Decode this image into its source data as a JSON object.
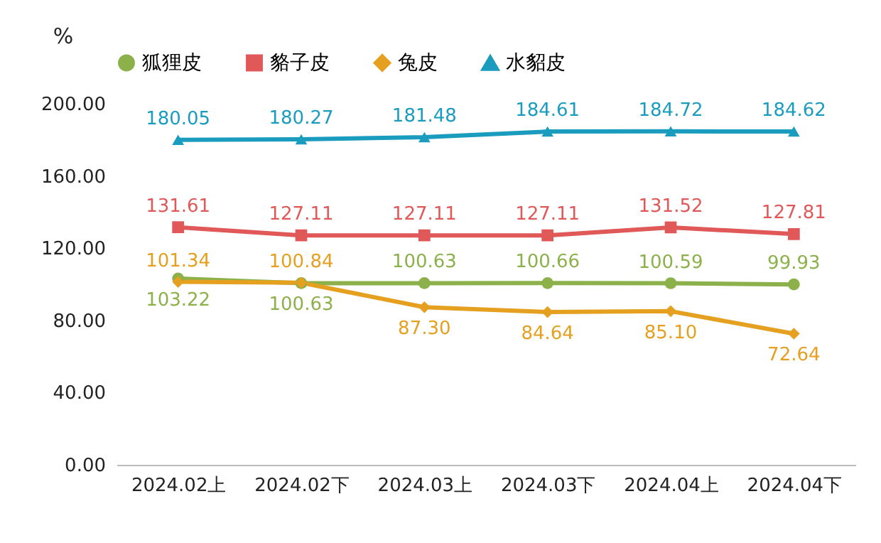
{
  "chart_data": {
    "type": "line",
    "ylabel": "%",
    "categories": [
      "2024.02上",
      "2024.02下",
      "2024.03上",
      "2024.03下",
      "2024.04上",
      "2024.04下"
    ],
    "series": [
      {
        "name": "狐狸皮",
        "color": "#8cb04a",
        "marker": "circle",
        "values": [
          103.22,
          100.63,
          100.63,
          100.66,
          100.59,
          99.93
        ],
        "value_labels": [
          "103.22",
          "100.63",
          "100.63",
          "100.66",
          "100.59",
          "99.93"
        ]
      },
      {
        "name": "貉子皮",
        "color": "#e05858",
        "marker": "square",
        "values": [
          131.61,
          127.11,
          127.11,
          127.11,
          131.52,
          127.81
        ],
        "value_labels": [
          "131.61",
          "127.11",
          "127.11",
          "127.11",
          "131.52",
          "127.81"
        ]
      },
      {
        "name": "兔皮",
        "color": "#e5a020",
        "marker": "diamond",
        "values": [
          101.34,
          100.84,
          87.3,
          84.64,
          85.1,
          72.64
        ],
        "value_labels": [
          "101.34",
          "100.84",
          "87.30",
          "84.64",
          "85.10",
          "72.64"
        ]
      },
      {
        "name": "水貂皮",
        "color": "#1a9cbf",
        "marker": "triangle",
        "values": [
          180.05,
          180.27,
          181.48,
          184.61,
          184.72,
          184.62
        ],
        "value_labels": [
          "180.05",
          "180.27",
          "181.48",
          "184.61",
          "184.72",
          "184.62"
        ]
      }
    ],
    "ylim": [
      0,
      200
    ],
    "yticks": [
      {
        "value": 0,
        "label": "0.00"
      },
      {
        "value": 40,
        "label": "40.00"
      },
      {
        "value": 80,
        "label": "80.00"
      },
      {
        "value": 120,
        "label": "120.00"
      },
      {
        "value": 160,
        "label": "160.00"
      },
      {
        "value": 200,
        "label": "200.00"
      }
    ],
    "grid": false,
    "legend": "top",
    "line_style": "solid"
  }
}
